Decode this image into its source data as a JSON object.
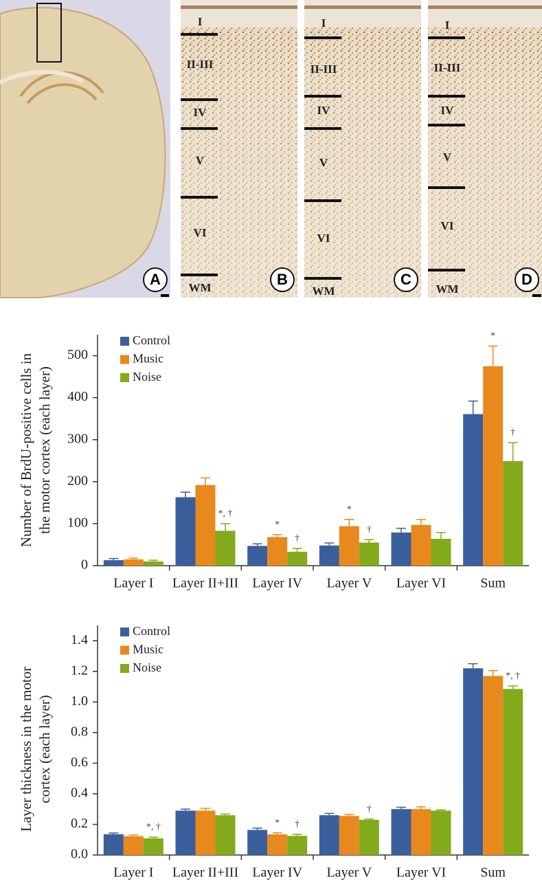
{
  "micrographs": {
    "panels": [
      {
        "letter": "A"
      },
      {
        "letter": "B",
        "layers": [
          "I",
          "II-III",
          "IV",
          "V",
          "VI",
          "WM"
        ]
      },
      {
        "letter": "C",
        "layers": [
          "I",
          "II-III",
          "IV",
          "V",
          "VI",
          "WM"
        ]
      },
      {
        "letter": "D",
        "layers": [
          "I",
          "II-III",
          "IV",
          "V",
          "VI",
          "WM"
        ]
      }
    ]
  },
  "chart_data": [
    {
      "type": "bar",
      "ylabel": [
        "Number of BrdU-positive cells in",
        "the motor cortex (each layer)"
      ],
      "categories": [
        "Layer I",
        "Layer II+III",
        "Layer IV",
        "Layer V",
        "Layer VI",
        "Sum"
      ],
      "series": [
        {
          "name": "Control",
          "color": "#3a5f9c",
          "values": [
            13,
            163,
            47,
            48,
            79,
            361
          ],
          "errors": [
            4,
            12,
            5,
            6,
            10,
            31
          ],
          "marks": [
            null,
            null,
            null,
            null,
            null,
            null
          ]
        },
        {
          "name": "Music",
          "color": "#e8891e",
          "values": [
            15,
            192,
            68,
            94,
            97,
            475
          ],
          "errors": [
            3,
            17,
            6,
            16,
            13,
            48
          ],
          "marks": [
            null,
            null,
            "*",
            "*",
            null,
            "*"
          ]
        },
        {
          "name": "Noise",
          "color": "#83aa1a",
          "values": [
            10,
            83,
            33,
            55,
            64,
            249
          ],
          "errors": [
            3,
            17,
            8,
            7,
            15,
            44
          ],
          "marks": [
            null,
            "*, †",
            "†",
            "†",
            null,
            "†"
          ]
        }
      ],
      "ylim": [
        0,
        550
      ],
      "yticks": [
        0,
        100,
        200,
        300,
        400,
        500
      ],
      "legend": "top-left"
    },
    {
      "type": "bar",
      "ylabel": [
        "Layer thickness in the motor",
        "cortex (each layer)"
      ],
      "categories": [
        "Layer I",
        "Layer II+III",
        "Layer IV",
        "Layer V",
        "Layer VI",
        "Sum"
      ],
      "series": [
        {
          "name": "Control",
          "color": "#3a5f9c",
          "values": [
            0.136,
            0.29,
            0.164,
            0.26,
            0.3,
            1.22
          ],
          "errors": [
            0.008,
            0.01,
            0.012,
            0.012,
            0.012,
            0.03
          ],
          "marks": [
            null,
            null,
            null,
            null,
            null,
            null
          ]
        },
        {
          "name": "Music",
          "color": "#e8891e",
          "values": [
            0.123,
            0.29,
            0.135,
            0.255,
            0.3,
            1.17
          ],
          "errors": [
            0.008,
            0.015,
            0.01,
            0.01,
            0.015,
            0.035
          ],
          "marks": [
            null,
            null,
            "*",
            null,
            null,
            null
          ]
        },
        {
          "name": "Noise",
          "color": "#83aa1a",
          "values": [
            0.109,
            0.26,
            0.125,
            0.23,
            0.29,
            1.085
          ],
          "errors": [
            0.008,
            0.008,
            0.01,
            0.005,
            0.005,
            0.02
          ],
          "marks": [
            "*, †",
            null,
            "†",
            "†",
            null,
            "*, †"
          ]
        }
      ],
      "ylim": [
        0,
        1.5
      ],
      "yticks": [
        {
          "value": 0,
          "label": "0.0"
        },
        0.2,
        0.4,
        0.6,
        0.8,
        {
          "value": 1,
          "label": "1.0"
        },
        1.2,
        1.4
      ],
      "legend": "top-left"
    }
  ]
}
